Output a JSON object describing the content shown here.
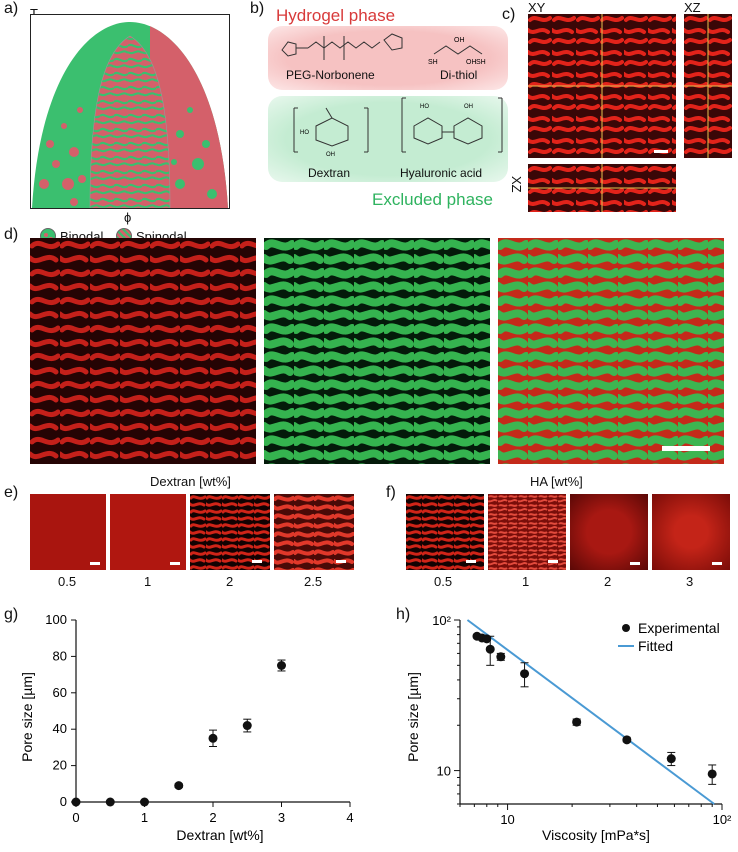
{
  "panel_a": {
    "label": "a)",
    "axis_y": "T",
    "axis_x": "ϕ",
    "legend": [
      {
        "name": "Binodal",
        "color": "#3bbf6f"
      },
      {
        "name": "Spinodal",
        "color": "#d4606a"
      }
    ]
  },
  "panel_b": {
    "label": "b)",
    "hydrogel_title": "Hydrogel phase",
    "excluded_title": "Excluded phase",
    "molecules": [
      "PEG-Norbonene",
      "Di-thiol",
      "Dextran",
      "Hyaluronic acid"
    ],
    "colors": {
      "hydrogel": "#d83a3a",
      "excluded": "#2fb35f"
    }
  },
  "panel_c": {
    "label": "c)",
    "views": [
      "XY",
      "XZ",
      "XZ"
    ]
  },
  "panel_d": {
    "label": "d)"
  },
  "panel_e": {
    "label": "e)",
    "title": "Dextran [wt%]",
    "values": [
      "0.5",
      "1",
      "2",
      "2.5"
    ]
  },
  "panel_f": {
    "label": "f)",
    "title": "HA [wt%]",
    "values": [
      "0.5",
      "1",
      "2",
      "3"
    ]
  },
  "chart_data": [
    {
      "panel": "g)",
      "type": "scatter",
      "xlabel": "Dextran [wt%]",
      "ylabel": "Pore size [µm]",
      "xlim": [
        0,
        4
      ],
      "ylim": [
        0,
        100
      ],
      "xticks": [
        "0",
        "1",
        "2",
        "3",
        "4"
      ],
      "yticks": [
        "0",
        "20",
        "40",
        "60",
        "80",
        "100"
      ],
      "x": [
        0,
        0.5,
        1,
        1.5,
        2,
        2.5,
        3
      ],
      "y": [
        0,
        0,
        0,
        9,
        35,
        42,
        75
      ],
      "yerr": [
        0,
        0,
        0,
        1,
        4.5,
        3.5,
        3
      ]
    },
    {
      "panel": "h)",
      "type": "scatter",
      "xlabel": "Viscosity [mPa*s]",
      "ylabel": "Pore size [µm]",
      "xscale": "log",
      "yscale": "log",
      "xlim": [
        6,
        100
      ],
      "ylim": [
        6,
        100
      ],
      "xticks": [
        "10",
        "10²"
      ],
      "yticks": [
        "10",
        "10²"
      ],
      "legend": [
        "Experimental",
        "Fitted"
      ],
      "legend_position": "top-right",
      "series": [
        {
          "name": "Experimental",
          "x": [
            7.2,
            7.6,
            8.0,
            8.3,
            9.3,
            12,
            21,
            36,
            58,
            90
          ],
          "y": [
            78,
            76,
            75,
            64,
            57,
            44,
            21,
            16,
            12,
            9.5
          ],
          "yerr_up": [
            2,
            2,
            2,
            14,
            3,
            8,
            1,
            0.5,
            1.2,
            1.4
          ],
          "yerr_down": [
            2,
            2,
            2,
            14,
            3,
            8,
            1,
            0.5,
            1.2,
            1.4
          ],
          "color": "#111111"
        },
        {
          "name": "Fitted",
          "x": [
            6.5,
            92
          ],
          "y": [
            100,
            6
          ],
          "color": "#4a9ad4"
        }
      ]
    }
  ]
}
